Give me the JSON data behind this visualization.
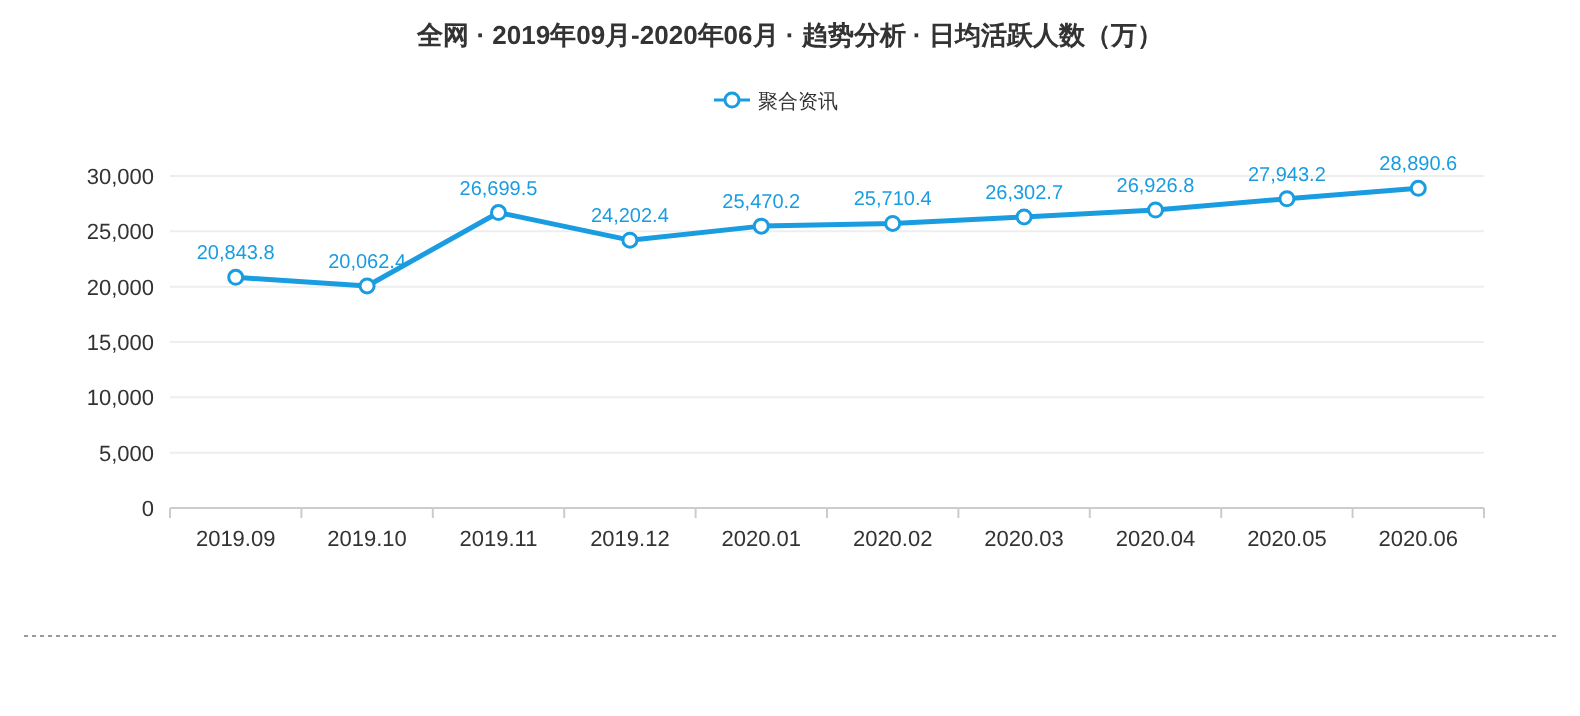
{
  "chart_data": {
    "type": "line",
    "title": "全网 · 2019年09月-2020年06月 · 趋势分析 · 日均活跃人数（万）",
    "categories": [
      "2019.09",
      "2019.10",
      "2019.11",
      "2019.12",
      "2020.01",
      "2020.02",
      "2020.03",
      "2020.04",
      "2020.05",
      "2020.06"
    ],
    "series": [
      {
        "name": "聚合资讯",
        "color": "#1a9de0",
        "values": [
          20843.8,
          20062.4,
          26699.5,
          24202.4,
          25470.2,
          25710.4,
          26302.7,
          26926.8,
          27943.2,
          28890.6
        ],
        "value_labels": [
          "20,843.8",
          "20,062.4",
          "26,699.5",
          "24,202.4",
          "25,470.2",
          "25,710.4",
          "26,302.7",
          "26,926.8",
          "27,943.2",
          "28,890.6"
        ]
      }
    ],
    "ylim": [
      0,
      30000
    ],
    "yticks": [
      {
        "value": 0,
        "label": "0"
      },
      {
        "value": 5000,
        "label": "5,000"
      },
      {
        "value": 10000,
        "label": "10,000"
      },
      {
        "value": 15000,
        "label": "15,000"
      },
      {
        "value": 20000,
        "label": "20,000"
      },
      {
        "value": 25000,
        "label": "25,000"
      },
      {
        "value": 30000,
        "label": "30,000"
      }
    ],
    "grid": "y",
    "legend": "top",
    "marker": "circle",
    "line_style": "solid"
  }
}
